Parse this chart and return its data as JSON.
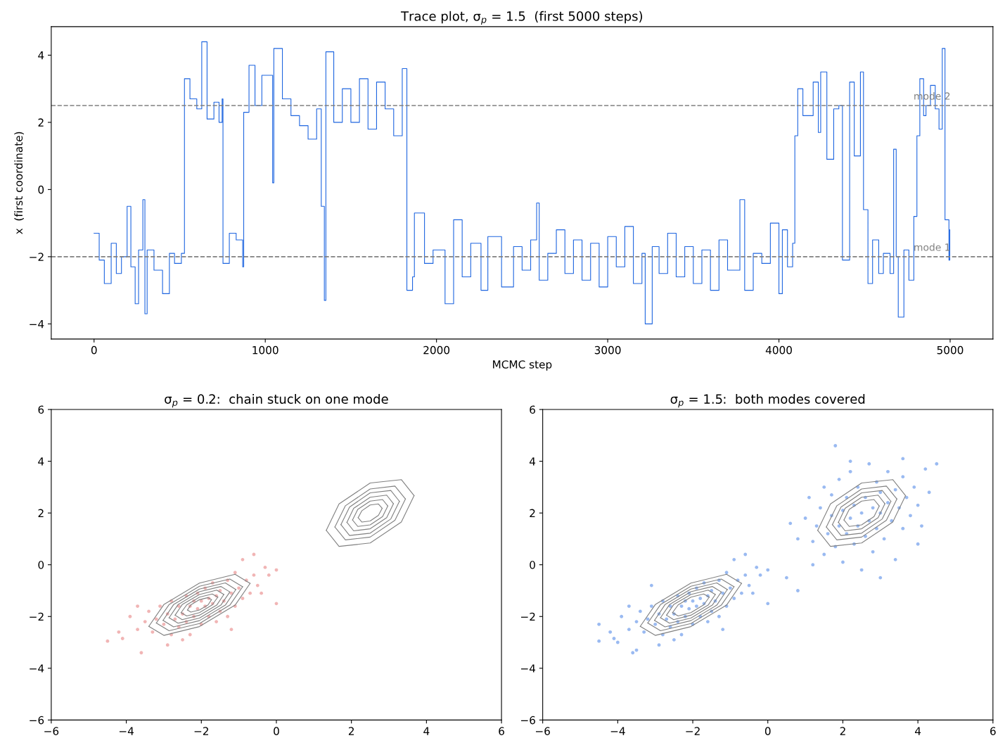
{
  "chart_data": [
    {
      "type": "step",
      "title": "Trace plot, σ$_{p}$ = 1.5  (first 5000 steps)",
      "xlabel": "MCMC step",
      "ylabel": "x  (first coordinate)",
      "xlim": [
        -250,
        5250
      ],
      "xticks": [
        0,
        1000,
        2000,
        3000,
        4000,
        5000
      ],
      "ylim": [
        -4.45,
        4.85
      ],
      "yticks": [
        {
          "value": -4,
          "label": "−4"
        },
        {
          "value": -2,
          "label": "−2"
        },
        0,
        2,
        4
      ],
      "ref_lines": [
        {
          "axis": "y",
          "value": 2.5,
          "label": "mode 2",
          "color": "#808080",
          "line_style": "dashed"
        },
        {
          "axis": "y",
          "value": -2,
          "label": "mode 1",
          "color": "#808080",
          "line_style": "dashed"
        }
      ],
      "series": [
        {
          "color": "#1f66e0",
          "x": [
            0,
            30,
            60,
            100,
            130,
            160,
            193,
            215,
            240,
            260,
            285,
            297,
            310,
            350,
            400,
            440,
            470,
            510,
            528,
            560,
            600,
            629,
            660,
            700,
            730,
            748,
            753,
            790,
            830,
            868,
            874,
            905,
            940,
            980,
            1043,
            1050,
            1100,
            1150,
            1200,
            1250,
            1300,
            1327,
            1345,
            1354,
            1400,
            1450,
            1500,
            1550,
            1600,
            1650,
            1700,
            1750,
            1800,
            1827,
            1860,
            1871,
            1930,
            1980,
            2050,
            2100,
            2150,
            2200,
            2260,
            2300,
            2380,
            2450,
            2500,
            2550,
            2585,
            2600,
            2650,
            2700,
            2750,
            2800,
            2850,
            2900,
            2950,
            3000,
            3050,
            3100,
            3150,
            3200,
            3219,
            3260,
            3300,
            3350,
            3400,
            3450,
            3500,
            3550,
            3600,
            3650,
            3700,
            3772,
            3800,
            3850,
            3900,
            3950,
            4000,
            4020,
            4050,
            4080,
            4093,
            4110,
            4140,
            4200,
            4230,
            4244,
            4280,
            4320,
            4350,
            4371,
            4413,
            4440,
            4476,
            4494,
            4520,
            4547,
            4583,
            4610,
            4649,
            4670,
            4685,
            4697,
            4730,
            4759,
            4788,
            4806,
            4823,
            4845,
            4859,
            4885,
            4913,
            4935,
            4954,
            4970,
            4993,
            4998
          ],
          "values": [
            -1.3,
            -2.1,
            -2.8,
            -1.6,
            -2.5,
            -2.0,
            -0.5,
            -2.3,
            -3.4,
            -1.8,
            -0.3,
            -3.7,
            -1.8,
            -2.4,
            -3.1,
            -1.9,
            -2.2,
            -1.9,
            3.3,
            2.7,
            2.4,
            4.4,
            2.1,
            2.6,
            2.0,
            2.7,
            -2.2,
            -1.3,
            -1.5,
            -2.3,
            2.3,
            3.7,
            2.5,
            3.4,
            0.2,
            4.2,
            2.7,
            2.2,
            1.9,
            1.5,
            2.4,
            -0.5,
            -3.3,
            4.1,
            2.0,
            3.0,
            2.0,
            3.3,
            1.8,
            3.2,
            2.4,
            1.6,
            3.6,
            -3.0,
            -2.6,
            -0.7,
            -2.2,
            -1.8,
            -3.4,
            -0.9,
            -2.6,
            -1.6,
            -3.0,
            -1.4,
            -2.9,
            -1.7,
            -2.4,
            -1.5,
            -0.4,
            -2.7,
            -1.9,
            -1.2,
            -2.5,
            -1.5,
            -2.7,
            -1.6,
            -2.9,
            -1.4,
            -2.3,
            -1.1,
            -2.8,
            -1.9,
            -4.0,
            -1.7,
            -2.5,
            -1.3,
            -2.6,
            -1.7,
            -2.8,
            -1.8,
            -3.0,
            -1.5,
            -2.4,
            -0.3,
            -3.0,
            -1.9,
            -2.2,
            -1.0,
            -3.1,
            -1.2,
            -2.3,
            -1.6,
            1.6,
            3.0,
            2.2,
            3.2,
            1.7,
            3.5,
            0.9,
            2.4,
            2.5,
            -2.1,
            3.2,
            1.0,
            3.5,
            -0.6,
            -2.8,
            -1.5,
            -2.5,
            -1.9,
            -2.5,
            1.2,
            -2.0,
            -3.8,
            -1.8,
            -2.7,
            -0.8,
            1.6,
            3.3,
            2.2,
            2.5,
            3.1,
            2.4,
            1.8,
            4.2,
            -0.9,
            -2.1,
            -1.2
          ]
        }
      ]
    },
    {
      "type": "scatter",
      "title": "σ$_{p}$ = 0.2:  chain stuck on one mode",
      "xlim": [
        -6,
        6
      ],
      "xticks": [
        {
          "value": -6,
          "label": "−6"
        },
        {
          "value": -4,
          "label": "−4"
        },
        {
          "value": -2,
          "label": "−2"
        },
        0,
        2,
        4,
        6
      ],
      "ylim": [
        -6,
        6
      ],
      "yticks": [
        {
          "value": -6,
          "label": "−6"
        },
        {
          "value": -4,
          "label": "−4"
        },
        {
          "value": -2,
          "label": "−2"
        },
        0,
        2,
        4,
        6
      ],
      "series": [
        {
          "color": "#e05a5a",
          "marker": "circle",
          "x": [
            -4.5,
            -4.1,
            -3.9,
            -3.7,
            -3.6,
            -3.5,
            -3.4,
            -3.3,
            -3.2,
            -3.1,
            -3.0,
            -2.9,
            -2.8,
            -2.8,
            -2.7,
            -2.6,
            -2.6,
            -2.5,
            -2.4,
            -2.4,
            -2.3,
            -2.3,
            -2.2,
            -2.2,
            -2.1,
            -2.1,
            -2.0,
            -2.0,
            -1.9,
            -1.9,
            -1.8,
            -1.8,
            -1.7,
            -1.7,
            -1.6,
            -1.6,
            -1.5,
            -1.5,
            -1.4,
            -1.3,
            -1.3,
            -1.2,
            -1.1,
            -1.1,
            -1.0,
            -0.9,
            -0.9,
            -0.8,
            -0.7,
            -0.6,
            -0.5,
            -0.4,
            -0.3,
            -0.2,
            0.0,
            0.0,
            -3.7,
            -2.9,
            -2.5,
            -1.2,
            -0.6,
            -4.2
          ],
          "values": [
            -2.95,
            -2.85,
            -2.0,
            -2.5,
            -3.4,
            -2.2,
            -1.8,
            -2.6,
            -2.1,
            -1.6,
            -2.3,
            -1.9,
            -2.7,
            -1.4,
            -2.1,
            -1.6,
            -2.4,
            -1.9,
            -1.2,
            -2.2,
            -1.6,
            -2.7,
            -1.4,
            -2.0,
            -1.1,
            -1.7,
            -1.4,
            -2.3,
            -1.6,
            -0.9,
            -1.3,
            -2.0,
            -1.5,
            -0.7,
            -1.2,
            -2.2,
            -1.8,
            -1.0,
            -1.4,
            -0.6,
            -2.0,
            -1.1,
            -1.6,
            -0.3,
            -0.9,
            -1.3,
            0.2,
            -0.6,
            -1.1,
            -0.4,
            -0.8,
            -1.1,
            -0.1,
            -0.4,
            -0.2,
            -1.5,
            -1.6,
            -3.1,
            -2.9,
            -2.5,
            0.4,
            -2.6
          ]
        },
        {
          "type": "line",
          "color": "#808080",
          "x": [
            1.33,
            1.67,
            2.5,
            3.33,
            3.67
          ],
          "values": [
            1.33,
            2.35,
            3.16,
            3.29,
            2.67
          ]
        },
        {
          "type": "line",
          "color": "#808080",
          "x": [
            1.33,
            1.67,
            2.5,
            3.33,
            3.67
          ],
          "values": [
            1.33,
            0.71,
            0.84,
            1.65,
            2.67
          ]
        },
        {
          "type": "line",
          "color": "#808080",
          "x": [
            1.56,
            1.84,
            2.5,
            3.16,
            3.44
          ],
          "values": [
            1.46,
            2.28,
            2.93,
            3.04,
            2.54
          ]
        },
        {
          "type": "line",
          "color": "#808080",
          "x": [
            1.56,
            1.84,
            2.5,
            3.16,
            3.44
          ],
          "values": [
            1.46,
            0.96,
            1.07,
            1.72,
            2.54
          ]
        },
        {
          "type": "line",
          "color": "#808080",
          "x": [
            1.72,
            1.95,
            2.5,
            3.05,
            3.28
          ],
          "values": [
            1.55,
            2.23,
            2.78,
            2.87,
            2.45
          ]
        },
        {
          "type": "line",
          "color": "#808080",
          "x": [
            1.72,
            1.95,
            2.5,
            3.05,
            3.28
          ],
          "values": [
            1.55,
            1.13,
            1.22,
            1.77,
            2.45
          ]
        },
        {
          "type": "line",
          "color": "#808080",
          "x": [
            1.88,
            2.06,
            2.5,
            2.94,
            3.12
          ],
          "values": [
            1.64,
            2.18,
            2.61,
            2.69,
            2.36
          ]
        },
        {
          "type": "line",
          "color": "#808080",
          "x": [
            1.88,
            2.06,
            2.5,
            2.94,
            3.12
          ],
          "values": [
            1.64,
            1.31,
            1.39,
            1.82,
            2.36
          ]
        },
        {
          "type": "line",
          "color": "#808080",
          "x": [
            2.03,
            2.17,
            2.5,
            2.83,
            2.97
          ],
          "values": [
            1.73,
            2.14,
            2.46,
            2.52,
            2.27
          ]
        },
        {
          "type": "line",
          "color": "#808080",
          "x": [
            2.03,
            2.17,
            2.5,
            2.83,
            2.97
          ],
          "values": [
            1.73,
            1.48,
            1.54,
            1.86,
            2.27
          ]
        },
        {
          "type": "line",
          "color": "#808080",
          "x": [
            2.18,
            2.28,
            2.5,
            2.72,
            2.82
          ],
          "values": [
            1.82,
            2.09,
            2.31,
            2.35,
            2.18
          ]
        },
        {
          "type": "line",
          "color": "#808080",
          "x": [
            2.18,
            2.28,
            2.5,
            2.72,
            2.82
          ],
          "values": [
            1.82,
            1.65,
            1.69,
            1.91,
            2.18
          ]
        },
        {
          "type": "line",
          "color": "#808080",
          "x": [
            -3.4,
            -3.0,
            -2.05,
            -1.1,
            -0.7
          ],
          "values": [
            -2.38,
            -1.54,
            -0.71,
            -0.37,
            -0.72
          ]
        },
        {
          "type": "line",
          "color": "#808080",
          "x": [
            -3.4,
            -3.0,
            -2.05,
            -1.1,
            -0.7
          ],
          "values": [
            -2.38,
            -2.73,
            -2.39,
            -1.56,
            -0.72
          ]
        },
        {
          "type": "line",
          "color": "#808080",
          "x": [
            -3.2,
            -2.86,
            -2.05,
            -1.24,
            -0.9
          ],
          "values": [
            -2.25,
            -1.54,
            -0.83,
            -0.55,
            -0.85
          ]
        },
        {
          "type": "line",
          "color": "#808080",
          "x": [
            -3.2,
            -2.86,
            -2.05,
            -1.24,
            -0.9
          ],
          "values": [
            -2.25,
            -2.55,
            -2.27,
            -1.56,
            -0.85
          ]
        },
        {
          "type": "line",
          "color": "#808080",
          "x": [
            -3.02,
            -2.74,
            -2.05,
            -1.36,
            -1.08
          ],
          "values": [
            -2.15,
            -1.54,
            -0.94,
            -0.7,
            -0.96
          ]
        },
        {
          "type": "line",
          "color": "#808080",
          "x": [
            -3.02,
            -2.74,
            -2.05,
            -1.36,
            -1.08
          ],
          "values": [
            -2.15,
            -2.4,
            -2.16,
            -1.56,
            -0.96
          ]
        },
        {
          "type": "line",
          "color": "#808080",
          "x": [
            -2.86,
            -2.62,
            -2.05,
            -1.48,
            -1.24
          ],
          "values": [
            -2.05,
            -1.54,
            -1.04,
            -0.84,
            -1.05
          ]
        },
        {
          "type": "line",
          "color": "#808080",
          "x": [
            -2.86,
            -2.62,
            -2.05,
            -1.48,
            -1.24
          ],
          "values": [
            -2.05,
            -2.26,
            -2.06,
            -1.56,
            -1.05
          ]
        },
        {
          "type": "line",
          "color": "#808080",
          "x": [
            -2.7,
            -2.51,
            -2.05,
            -1.59,
            -1.4
          ],
          "values": [
            -1.95,
            -1.54,
            -1.15,
            -0.98,
            -1.15
          ]
        },
        {
          "type": "line",
          "color": "#808080",
          "x": [
            -2.7,
            -2.51,
            -2.05,
            -1.59,
            -1.4
          ],
          "values": [
            -1.95,
            -2.12,
            -1.95,
            -1.56,
            -1.15
          ]
        },
        {
          "type": "line",
          "color": "#808080",
          "x": [
            -2.54,
            -2.39,
            -2.05,
            -1.71,
            -1.56
          ],
          "values": [
            -1.85,
            -1.55,
            -1.25,
            -1.13,
            -1.25
          ]
        },
        {
          "type": "line",
          "color": "#808080",
          "x": [
            -2.54,
            -2.39,
            -2.05,
            -1.71,
            -1.56
          ],
          "values": [
            -1.85,
            -1.98,
            -1.85,
            -1.55,
            -1.25
          ]
        },
        {
          "type": "line",
          "color": "#808080",
          "x": [
            -2.37,
            -2.28,
            -2.05,
            -1.82,
            -1.73
          ],
          "values": [
            -1.75,
            -1.55,
            -1.35,
            -1.27,
            -1.35
          ]
        },
        {
          "type": "line",
          "color": "#808080",
          "x": [
            -2.37,
            -2.28,
            -2.05,
            -1.82,
            -1.73
          ],
          "values": [
            -1.75,
            -1.83,
            -1.75,
            -1.55,
            -1.35
          ]
        }
      ]
    },
    {
      "type": "scatter",
      "title": "σ$_{p}$ = 1.5:  both modes covered",
      "xlim": [
        -6,
        6
      ],
      "xticks": [
        {
          "value": -6,
          "label": "−6"
        },
        {
          "value": -4,
          "label": "−4"
        },
        {
          "value": -2,
          "label": "−2"
        },
        0,
        2,
        4,
        6
      ],
      "ylim": [
        -6,
        6
      ],
      "yticks": [
        {
          "value": -6,
          "label": "−6"
        },
        {
          "value": -4,
          "label": "−4"
        },
        {
          "value": -2,
          "label": "−2"
        },
        0,
        2,
        4,
        6
      ],
      "series": [
        {
          "color": "#1f66e0",
          "marker": "circle",
          "x": [
            -4.5,
            -4.1,
            -3.9,
            -3.7,
            -3.6,
            -3.5,
            -3.4,
            -3.3,
            -3.2,
            -3.1,
            -3.0,
            -2.9,
            -2.8,
            -2.8,
            -2.7,
            -2.6,
            -2.6,
            -2.5,
            -2.4,
            -2.4,
            -2.3,
            -2.3,
            -2.2,
            -2.2,
            -2.1,
            -2.1,
            -2.0,
            -2.0,
            -1.9,
            -1.9,
            -1.8,
            -1.8,
            -1.7,
            -1.7,
            -1.6,
            -1.6,
            -1.5,
            -1.5,
            -1.4,
            -1.3,
            -1.3,
            -1.2,
            -1.1,
            -1.1,
            -1.0,
            -0.9,
            -0.9,
            -0.8,
            -0.7,
            -0.6,
            -0.5,
            -0.4,
            -0.3,
            -0.2,
            0.0,
            0.0,
            -3.7,
            -2.9,
            -2.5,
            -1.2,
            -0.6,
            -4.2,
            -4.5,
            -4.0,
            -3.5,
            0.5,
            0.8,
            -3.1
          ],
          "values": [
            -2.95,
            -2.85,
            -2.0,
            -2.5,
            -3.4,
            -2.2,
            -1.8,
            -2.6,
            -2.1,
            -1.6,
            -2.3,
            -1.9,
            -2.7,
            -1.4,
            -2.1,
            -1.6,
            -2.4,
            -1.9,
            -1.2,
            -2.2,
            -1.6,
            -2.7,
            -1.4,
            -2.0,
            -1.1,
            -1.7,
            -1.4,
            -2.3,
            -1.6,
            -0.9,
            -1.3,
            -2.0,
            -1.5,
            -0.7,
            -1.2,
            -2.2,
            -1.8,
            -1.0,
            -1.4,
            -0.6,
            -2.0,
            -1.1,
            -1.6,
            -0.3,
            -0.9,
            -1.3,
            0.2,
            -0.6,
            -1.1,
            -0.4,
            -0.8,
            -1.1,
            -0.1,
            -0.4,
            -0.2,
            -1.5,
            -1.6,
            -3.1,
            -2.9,
            -2.5,
            0.4,
            -2.6,
            -2.3,
            -3.0,
            -3.3,
            -0.5,
            -1.0,
            -0.8
          ]
        },
        {
          "color": "#1f66e0",
          "marker": "circle",
          "x": [
            0.8,
            1.0,
            1.1,
            1.2,
            1.3,
            1.4,
            1.5,
            1.5,
            1.6,
            1.7,
            1.7,
            1.8,
            1.8,
            1.9,
            1.9,
            2.0,
            2.0,
            2.1,
            2.1,
            2.2,
            2.2,
            2.3,
            2.3,
            2.4,
            2.4,
            2.5,
            2.5,
            2.6,
            2.6,
            2.7,
            2.7,
            2.8,
            2.8,
            2.9,
            2.9,
            3.0,
            3.0,
            3.1,
            3.2,
            3.2,
            3.3,
            3.4,
            3.4,
            3.5,
            3.6,
            3.6,
            3.7,
            3.8,
            3.9,
            4.0,
            4.1,
            4.2,
            4.3,
            4.5,
            3.0,
            1.2,
            2.2,
            3.6,
            4.0,
            0.6
          ],
          "values": [
            1.0,
            1.8,
            2.6,
            0.9,
            1.5,
            2.2,
            0.4,
            3.0,
            1.2,
            1.9,
            2.7,
            0.7,
            4.6,
            1.5,
            3.3,
            2.1,
            0.1,
            1.2,
            2.6,
            1.8,
            3.6,
            0.8,
            2.3,
            1.5,
            3.0,
            2.0,
            -0.2,
            1.1,
            2.6,
            1.7,
            3.9,
            2.2,
            0.5,
            1.4,
            3.2,
            2.0,
            2.8,
            1.0,
            2.4,
            3.6,
            1.7,
            2.9,
            0.2,
            2.2,
            1.4,
            3.4,
            2.6,
            1.9,
            3.0,
            2.3,
            1.5,
            3.7,
            2.8,
            3.9,
            -0.5,
            0.0,
            4.0,
            4.1,
            0.8,
            1.6
          ]
        },
        {
          "type": "line",
          "color": "#808080",
          "x": [
            1.33,
            1.67,
            2.5,
            3.33,
            3.67
          ],
          "values": [
            1.33,
            2.35,
            3.16,
            3.29,
            2.67
          ]
        },
        {
          "type": "line",
          "color": "#808080",
          "x": [
            1.33,
            1.67,
            2.5,
            3.33,
            3.67
          ],
          "values": [
            1.33,
            0.71,
            0.84,
            1.65,
            2.67
          ]
        },
        {
          "type": "line",
          "color": "#808080",
          "x": [
            1.56,
            1.84,
            2.5,
            3.16,
            3.44
          ],
          "values": [
            1.46,
            2.28,
            2.93,
            3.04,
            2.54
          ]
        },
        {
          "type": "line",
          "color": "#808080",
          "x": [
            1.56,
            1.84,
            2.5,
            3.16,
            3.44
          ],
          "values": [
            1.46,
            0.96,
            1.07,
            1.72,
            2.54
          ]
        },
        {
          "type": "line",
          "color": "#808080",
          "x": [
            1.72,
            1.95,
            2.5,
            3.05,
            3.28
          ],
          "values": [
            1.55,
            2.23,
            2.78,
            2.87,
            2.45
          ]
        },
        {
          "type": "line",
          "color": "#808080",
          "x": [
            1.72,
            1.95,
            2.5,
            3.05,
            3.28
          ],
          "values": [
            1.55,
            1.13,
            1.22,
            1.77,
            2.45
          ]
        },
        {
          "type": "line",
          "color": "#808080",
          "x": [
            1.88,
            2.06,
            2.5,
            2.94,
            3.12
          ],
          "values": [
            1.64,
            2.18,
            2.61,
            2.69,
            2.36
          ]
        },
        {
          "type": "line",
          "color": "#808080",
          "x": [
            1.88,
            2.06,
            2.5,
            2.94,
            3.12
          ],
          "values": [
            1.64,
            1.31,
            1.39,
            1.82,
            2.36
          ]
        },
        {
          "type": "line",
          "color": "#808080",
          "x": [
            2.03,
            2.17,
            2.5,
            2.83,
            2.97
          ],
          "values": [
            1.73,
            2.14,
            2.46,
            2.52,
            2.27
          ]
        },
        {
          "type": "line",
          "color": "#808080",
          "x": [
            2.03,
            2.17,
            2.5,
            2.83,
            2.97
          ],
          "values": [
            1.73,
            1.48,
            1.54,
            1.86,
            2.27
          ]
        },
        {
          "type": "line",
          "color": "#808080",
          "x": [
            -3.4,
            -3.0,
            -2.05,
            -1.1,
            -0.7
          ],
          "values": [
            -2.38,
            -1.54,
            -0.71,
            -0.37,
            -0.72
          ]
        },
        {
          "type": "line",
          "color": "#808080",
          "x": [
            -3.4,
            -3.0,
            -2.05,
            -1.1,
            -0.7
          ],
          "values": [
            -2.38,
            -2.73,
            -2.39,
            -1.56,
            -0.72
          ]
        },
        {
          "type": "line",
          "color": "#808080",
          "x": [
            -3.2,
            -2.86,
            -2.05,
            -1.24,
            -0.9
          ],
          "values": [
            -2.25,
            -1.54,
            -0.83,
            -0.55,
            -0.85
          ]
        },
        {
          "type": "line",
          "color": "#808080",
          "x": [
            -3.2,
            -2.86,
            -2.05,
            -1.24,
            -0.9
          ],
          "values": [
            -2.25,
            -2.55,
            -2.27,
            -1.56,
            -0.85
          ]
        },
        {
          "type": "line",
          "color": "#808080",
          "x": [
            -3.02,
            -2.74,
            -2.05,
            -1.36,
            -1.08
          ],
          "values": [
            -2.15,
            -1.54,
            -0.94,
            -0.7,
            -0.96
          ]
        },
        {
          "type": "line",
          "color": "#808080",
          "x": [
            -3.02,
            -2.74,
            -2.05,
            -1.36,
            -1.08
          ],
          "values": [
            -2.15,
            -2.4,
            -2.16,
            -1.56,
            -0.96
          ]
        },
        {
          "type": "line",
          "color": "#808080",
          "x": [
            -2.86,
            -2.62,
            -2.05,
            -1.48,
            -1.24
          ],
          "values": [
            -2.05,
            -1.54,
            -1.04,
            -0.84,
            -1.05
          ]
        },
        {
          "type": "line",
          "color": "#808080",
          "x": [
            -2.86,
            -2.62,
            -2.05,
            -1.48,
            -1.24
          ],
          "values": [
            -2.05,
            -2.26,
            -2.06,
            -1.56,
            -1.05
          ]
        },
        {
          "type": "line",
          "color": "#808080",
          "x": [
            -2.7,
            -2.51,
            -2.05,
            -1.59,
            -1.4
          ],
          "values": [
            -1.95,
            -1.54,
            -1.15,
            -0.98,
            -1.15
          ]
        },
        {
          "type": "line",
          "color": "#808080",
          "x": [
            -2.7,
            -2.51,
            -2.05,
            -1.59,
            -1.4
          ],
          "values": [
            -1.95,
            -2.12,
            -1.95,
            -1.56,
            -1.15
          ]
        },
        {
          "type": "line",
          "color": "#808080",
          "x": [
            -2.54,
            -2.39,
            -2.05,
            -1.71,
            -1.56
          ],
          "values": [
            -1.85,
            -1.55,
            -1.25,
            -1.13,
            -1.25
          ]
        },
        {
          "type": "line",
          "color": "#808080",
          "x": [
            -2.54,
            -2.39,
            -2.05,
            -1.71,
            -1.56
          ],
          "values": [
            -1.85,
            -1.98,
            -1.85,
            -1.55,
            -1.25
          ]
        }
      ]
    }
  ]
}
